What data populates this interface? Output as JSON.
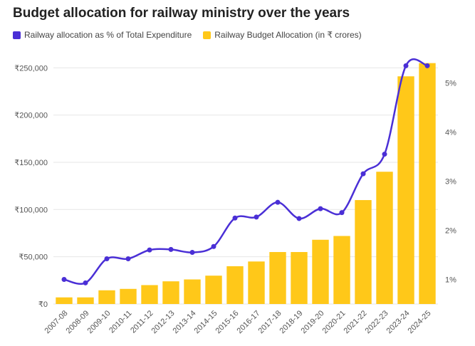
{
  "colors": {
    "line": "#4a2fd6",
    "bar": "#ffc819"
  },
  "chart_data": {
    "type": "bar",
    "title": "Budget allocation for railway ministry over the years",
    "categories": [
      "2007-08",
      "2008-09",
      "2009-10",
      "2010-11",
      "2011-12",
      "2012-13",
      "2013-14",
      "2014-15",
      "2015-16",
      "2016-17",
      "2017-18",
      "2018-19",
      "2019-20",
      "2020-21",
      "2021-22",
      "2022-23",
      "2023-24",
      "2024-25"
    ],
    "series": [
      {
        "name": "Railway allocation as % of Total Expenditure",
        "type": "line",
        "axis": "right",
        "values": [
          1.0,
          0.93,
          1.42,
          1.42,
          1.6,
          1.61,
          1.55,
          1.67,
          2.25,
          2.27,
          2.57,
          2.24,
          2.44,
          2.36,
          3.15,
          3.55,
          5.35,
          5.35
        ]
      },
      {
        "name": "Railway Budget Allocation (in ₹ crores)",
        "type": "bar",
        "axis": "left",
        "values": [
          7000,
          7000,
          14500,
          16000,
          20000,
          24000,
          26000,
          30000,
          40000,
          45000,
          55000,
          55000,
          68000,
          72000,
          110000,
          140000,
          241000,
          255000
        ]
      }
    ],
    "ylim_left": [
      0,
      260000
    ],
    "ylim_right": [
      0.5,
      5.5
    ],
    "yticks_left": [
      "₹0",
      "₹50,000",
      "₹100,000",
      "₹150,000",
      "₹200,000",
      "₹250,000"
    ],
    "yticks_right": [
      "1%",
      "2%",
      "3%",
      "4%",
      "5%"
    ],
    "grid": true,
    "legend_position": "top-left"
  }
}
